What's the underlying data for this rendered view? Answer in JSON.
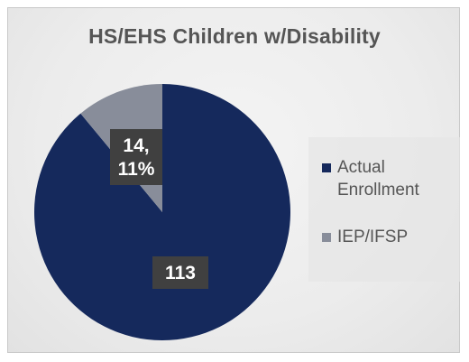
{
  "chart_data": {
    "type": "pie",
    "title": "HS/EHS Children w/Disability",
    "legend_position": "right",
    "slices": [
      {
        "name": "Actual Enrollment",
        "value": 113,
        "label_lines": [
          "113"
        ],
        "color": "#15295c"
      },
      {
        "name": "IEP/IFSP",
        "value": 14,
        "label_lines": [
          "14,",
          "11%"
        ],
        "color": "#888d9a"
      }
    ]
  },
  "legend": {
    "items": [
      {
        "lines": [
          "Actual",
          "Enrollment"
        ],
        "color": "#15295c"
      },
      {
        "lines": [
          "IEP/IFSP"
        ],
        "color": "#888d9a"
      }
    ]
  }
}
